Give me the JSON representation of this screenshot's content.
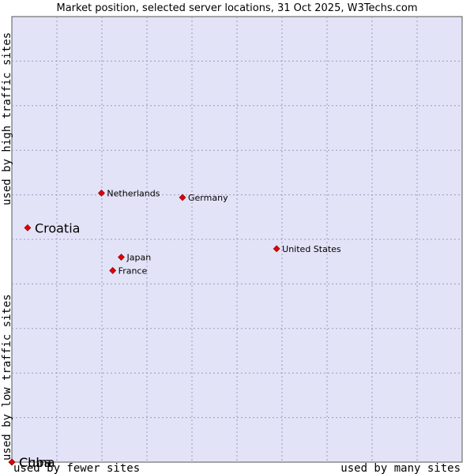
{
  "chart_data": {
    "type": "scatter",
    "title": "Market position, selected server locations, 31 Oct 2025, W3Techs.com",
    "xlabel_low": "used by fewer sites",
    "xlabel_high": "used by many sites",
    "ylabel_low": "used by low traffic sites",
    "ylabel_high": "used by high traffic sites",
    "xlim": [
      0,
      100
    ],
    "ylim": [
      0,
      100
    ],
    "grid": true,
    "points": [
      {
        "label": "Netherlands",
        "x": 19.9,
        "y": 60.4,
        "emphasis": false
      },
      {
        "label": "Germany",
        "x": 37.9,
        "y": 59.4,
        "emphasis": false
      },
      {
        "label": "Croatia",
        "x": 3.5,
        "y": 52.6,
        "emphasis": true
      },
      {
        "label": "United States",
        "x": 58.8,
        "y": 47.9,
        "emphasis": false
      },
      {
        "label": "Japan",
        "x": 24.3,
        "y": 46.0,
        "emphasis": false
      },
      {
        "label": "France",
        "x": 22.4,
        "y": 43.0,
        "emphasis": false
      },
      {
        "label": "China",
        "x": 0.0,
        "y": 0.0,
        "emphasis": true
      },
      {
        "label": "Cuba",
        "x": 0.0,
        "y": 0.0,
        "emphasis": true
      }
    ]
  }
}
